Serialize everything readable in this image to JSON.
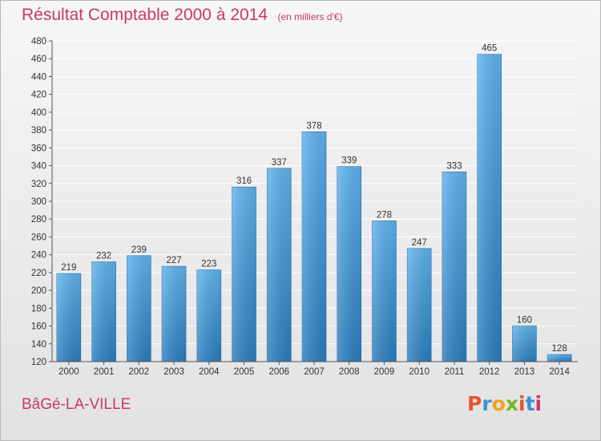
{
  "header": {
    "title": "Résultat Comptable 2000 à 2014",
    "subtitle": "(en milliers d'€)"
  },
  "footer": {
    "town": "BâGé-LA-VILLE",
    "logo": "Proxiti"
  },
  "colors": {
    "title": "#c8386f",
    "bar_light": "#5aaee8",
    "bar_dark": "#2b7fc0",
    "background": "#e8e8e8"
  },
  "chart_data": {
    "type": "bar",
    "title": "Résultat Comptable 2000 à 2014",
    "xlabel": "",
    "ylabel": "",
    "ylim": [
      120,
      480
    ],
    "ytick_step": 20,
    "grid": true,
    "show_data_labels": true,
    "categories": [
      "2000",
      "2001",
      "2002",
      "2003",
      "2004",
      "2005",
      "2006",
      "2007",
      "2008",
      "2009",
      "2010",
      "2011",
      "2012",
      "2013",
      "2014"
    ],
    "values": [
      219,
      232,
      239,
      227,
      223,
      316,
      337,
      378,
      339,
      278,
      247,
      333,
      465,
      160,
      128
    ]
  }
}
